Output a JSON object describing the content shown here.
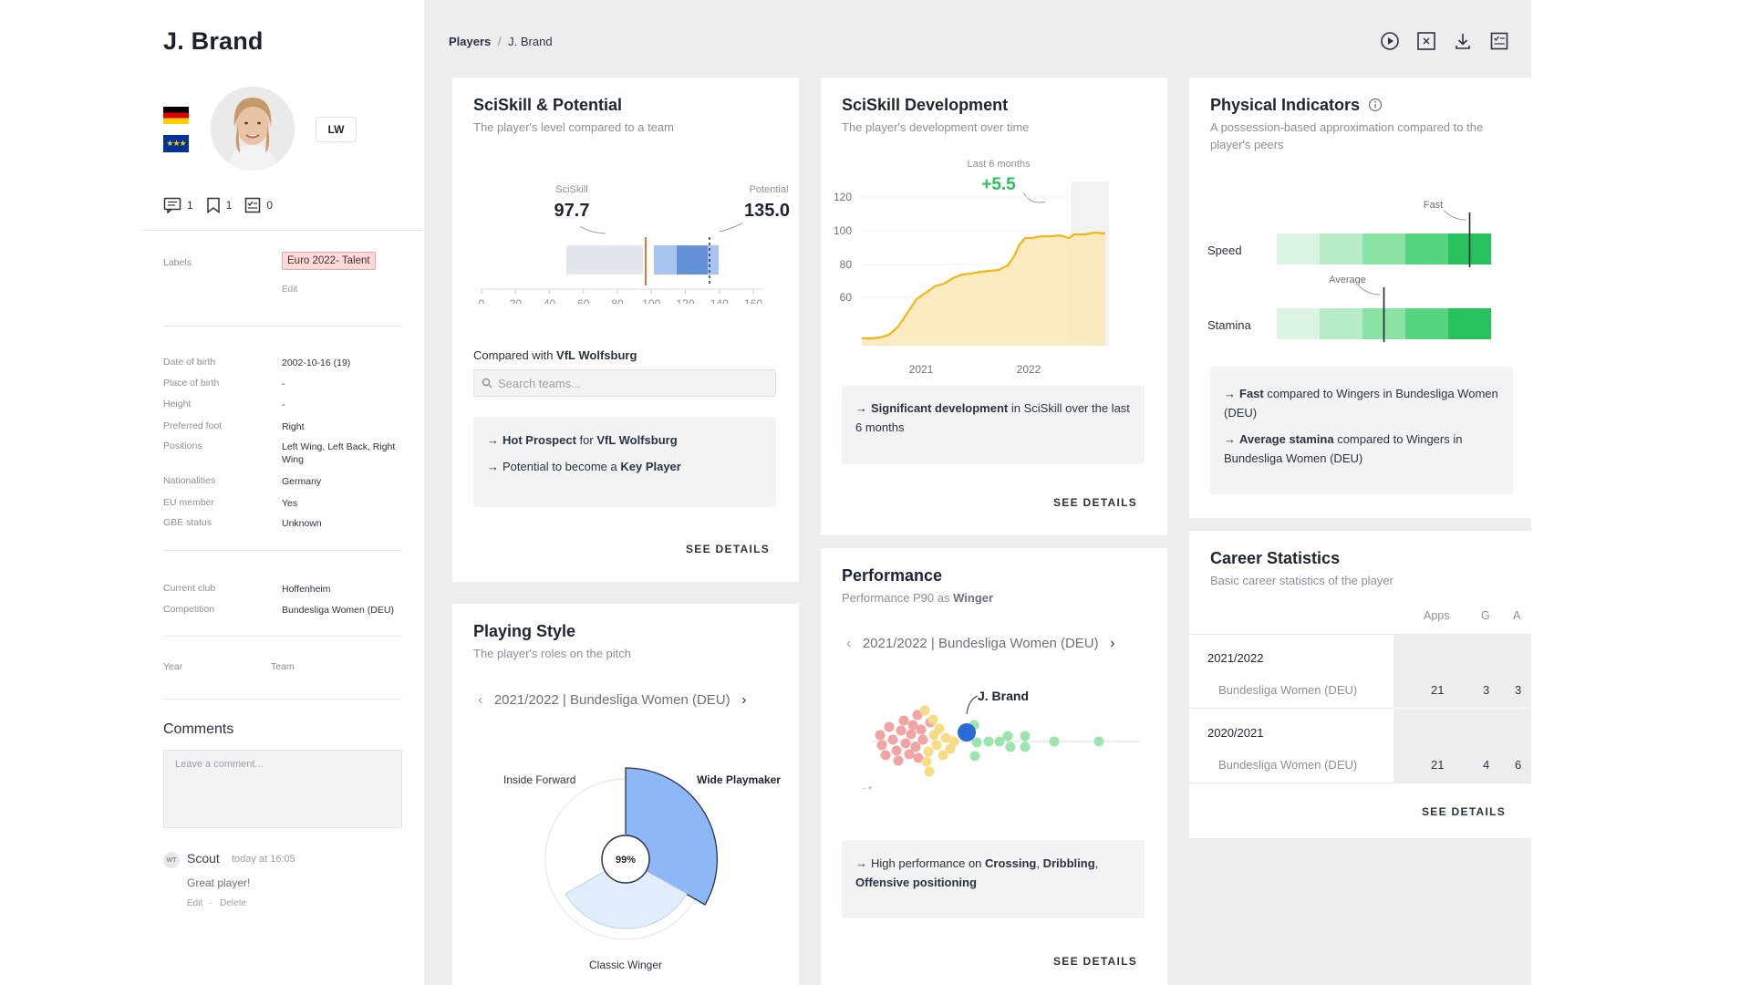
{
  "player": {
    "name": "J. Brand",
    "position_chip": "LW",
    "counts": {
      "comments": "1",
      "bookmarks": "1",
      "reports": "0"
    },
    "labels_key": "Labels",
    "label_tag": "Euro 2022- Talent",
    "edit": "Edit",
    "details": [
      {
        "k": "Date of birth",
        "v": "2002-10-16 (19)"
      },
      {
        "k": "Place of birth",
        "v": "-"
      },
      {
        "k": "Height",
        "v": "-"
      },
      {
        "k": "Preferred foot",
        "v": "Right"
      },
      {
        "k": "Positions",
        "v": "Left Wing, Left Back, Right Wing"
      },
      {
        "k": "Nationalities",
        "v": "Germany"
      },
      {
        "k": "EU member",
        "v": "Yes"
      },
      {
        "k": "GBE status",
        "v": "Unknown"
      }
    ],
    "club": [
      {
        "k": "Current club",
        "v": "Hoffenheim"
      },
      {
        "k": "Competition",
        "v": "Bundesliga Women (DEU)"
      }
    ],
    "history_headers": {
      "year": "Year",
      "team": "Team"
    }
  },
  "comments": {
    "title": "Comments",
    "placeholder": "Leave a comment...",
    "items": [
      {
        "initials": "WT",
        "author": "Scout",
        "time": "today at 16:05",
        "text": "Great player!",
        "edit": "Edit",
        "delete": "Delete"
      }
    ]
  },
  "breadcrumb": {
    "root": "Players",
    "sep": "/",
    "current": "J. Brand"
  },
  "top_icons": [
    "play-icon",
    "compare-icon",
    "download-icon",
    "report-icon"
  ],
  "sciskill": {
    "title": "SciSkill & Potential",
    "subtitle": "The player's level compared to a team",
    "sciskill_label": "SciSkill",
    "sciskill_value": "97.7",
    "potential_label": "Potential",
    "potential_value": "135.0",
    "axis_ticks": [
      "0",
      "20",
      "40",
      "60",
      "80",
      "100",
      "120",
      "140",
      "160"
    ],
    "compared_prefix": "Compared with ",
    "compared_team": "VfL Wolfsburg",
    "search_placeholder": "Search teams...",
    "insights": [
      {
        "bold": "Hot Prospect",
        "mid": " for ",
        "bold2": "VfL Wolfsburg"
      },
      {
        "text": "Potential to become a ",
        "bold": "Key Player"
      }
    ],
    "see_details": "SEE DETAILS"
  },
  "development": {
    "title": "SciSkill Development",
    "subtitle": "The player's development over time",
    "last_label": "Last 6 months",
    "delta": "+5.5",
    "y_ticks": [
      "120",
      "100",
      "80",
      "60"
    ],
    "x_ticks": [
      "2021",
      "2022"
    ],
    "insight_bold": "Significant development",
    "insight_rest": " in SciSkill over the last 6 months",
    "see_details": "SEE DETAILS"
  },
  "physical": {
    "title": "Physical Indicators",
    "subtitle": "A possession-based approximation compared to the player's peers",
    "rows": [
      {
        "label": "Speed",
        "marker_label": "Fast",
        "level": 0.9
      },
      {
        "label": "Stamina",
        "marker_label": "Average",
        "level": 0.5
      }
    ],
    "colors": [
      "#dcf5e3",
      "#b8ecc6",
      "#8be2a5",
      "#56d47f",
      "#27c25e"
    ],
    "insights": [
      {
        "bold": "Fast",
        "rest": " compared to Wingers in Bundesliga Women (DEU)"
      },
      {
        "bold": "Average stamina",
        "rest": " compared to Wingers in Bundesliga Women (DEU)"
      }
    ]
  },
  "playing_style": {
    "title": "Playing Style",
    "subtitle": "The player's roles on the pitch",
    "season": "2021/2022 | Bundesliga Women (DEU)",
    "center": "99%",
    "roles": [
      {
        "label": "Inside Forward"
      },
      {
        "label": "Wide Playmaker"
      },
      {
        "label": "Classic Winger"
      }
    ]
  },
  "performance": {
    "title": "Performance",
    "subtitle_prefix": "Performance P90 as ",
    "subtitle_role": "Winger",
    "season": "2021/2022 | Bundesliga Women (DEU)",
    "player_label": "J. Brand",
    "insight_prefix": "High performance on ",
    "insight_items": [
      "Crossing",
      "Dribbling",
      "Offensive positioning"
    ],
    "see_details": "SEE DETAILS"
  },
  "career": {
    "title": "Career Statistics",
    "subtitle": "Basic career statistics of the player",
    "headers": [
      "Apps",
      "G",
      "A"
    ],
    "seasons": [
      {
        "season": "2021/2022",
        "competition": "Bundesliga Women (DEU)",
        "apps": "21",
        "g": "3",
        "a": "3"
      },
      {
        "season": "2020/2021",
        "competition": "Bundesliga Women (DEU)",
        "apps": "21",
        "g": "4",
        "a": "6"
      }
    ],
    "see_details": "SEE DETAILS"
  }
}
